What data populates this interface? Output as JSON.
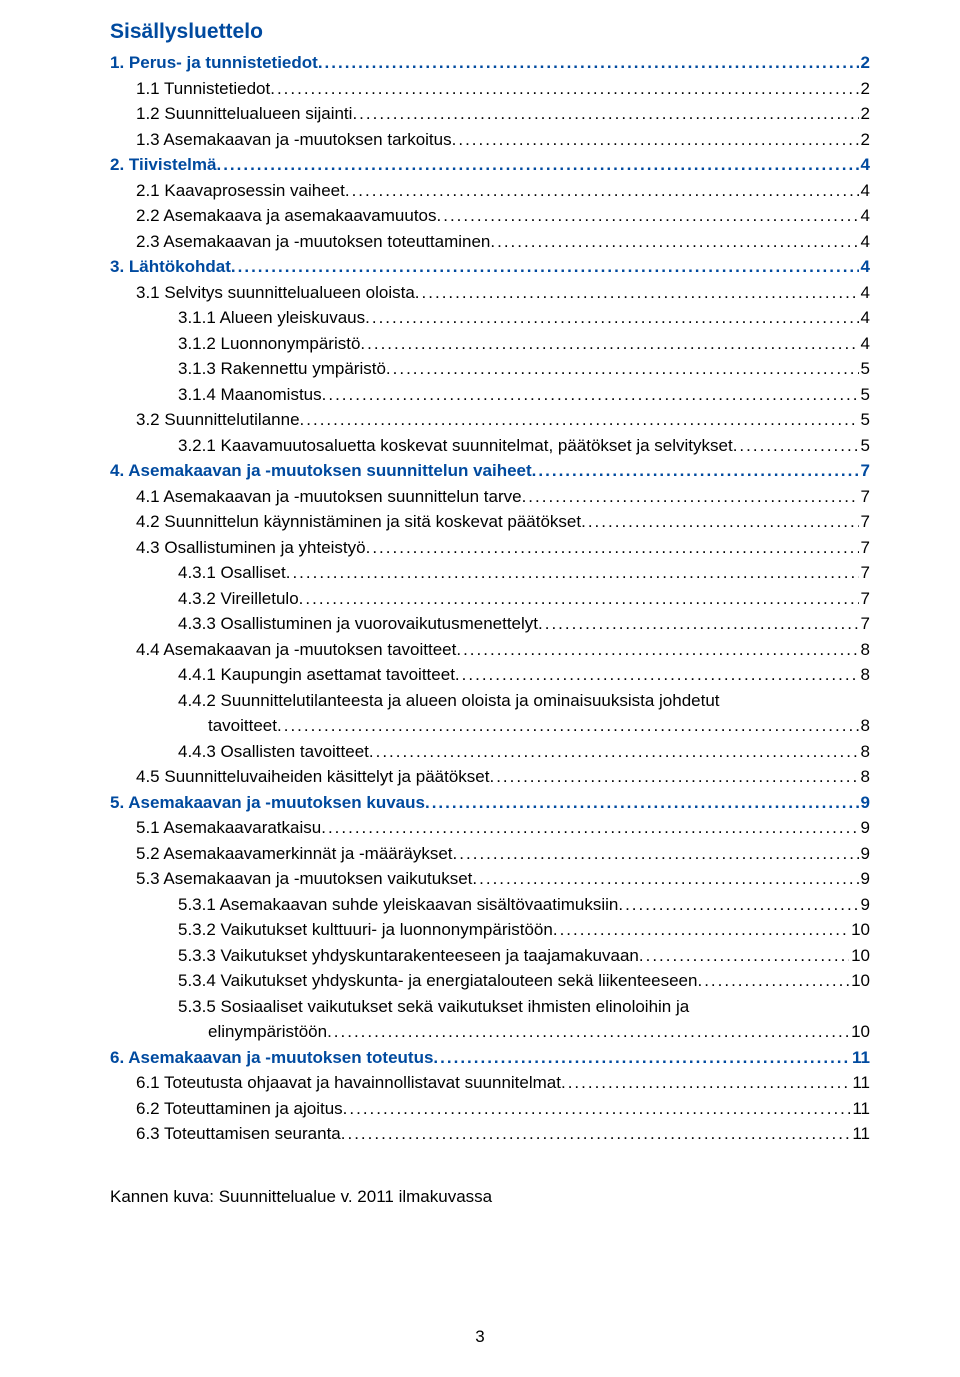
{
  "colors": {
    "heading_blue": "#004a9f",
    "body_text": "#000000",
    "background": "#ffffff"
  },
  "typography": {
    "title_fontsize_pt": 16,
    "body_fontsize_pt": 13,
    "font_family": "Arial"
  },
  "title": "Sisällysluettelo",
  "caption": "Kannen kuva: Suunnittelualue v. 2011 ilmakuvassa",
  "page_number": "3",
  "toc": [
    {
      "level": 1,
      "label": "1. Perus- ja tunnistetiedot",
      "page": "2"
    },
    {
      "level": 2,
      "label": "1.1  Tunnistetiedot",
      "page": "2"
    },
    {
      "level": 2,
      "label": "1.2  Suunnittelualueen sijainti",
      "page": "2"
    },
    {
      "level": 2,
      "label": "1.3  Asemakaavan ja -muutoksen tarkoitus",
      "page": "2"
    },
    {
      "level": 1,
      "label": "2. Tiivistelmä",
      "page": "4"
    },
    {
      "level": 2,
      "label": "2.1  Kaavaprosessin vaiheet",
      "page": "4"
    },
    {
      "level": 2,
      "label": "2.2  Asemakaava ja asemakaavamuutos",
      "page": "4"
    },
    {
      "level": 2,
      "label": "2.3  Asemakaavan ja -muutoksen toteuttaminen",
      "page": "4"
    },
    {
      "level": 1,
      "label": "3. Lähtökohdat",
      "page": "4"
    },
    {
      "level": 2,
      "label": "3.1  Selvitys suunnittelualueen oloista",
      "page": "4"
    },
    {
      "level": 3,
      "label": "3.1.1  Alueen yleiskuvaus",
      "page": "4"
    },
    {
      "level": 3,
      "label": "3.1.2  Luonnonympäristö",
      "page": "4"
    },
    {
      "level": 3,
      "label": "3.1.3  Rakennettu ympäristö",
      "page": "5"
    },
    {
      "level": 3,
      "label": "3.1.4  Maanomistus",
      "page": "5"
    },
    {
      "level": 2,
      "label": "3.2  Suunnittelutilanne",
      "page": "5"
    },
    {
      "level": 3,
      "label": "3.2.1  Kaavamuutosaluetta koskevat suunnitelmat, päätökset ja selvitykset",
      "page": "5"
    },
    {
      "level": 1,
      "label": "4. Asemakaavan ja -muutoksen suunnittelun vaiheet",
      "page": "7"
    },
    {
      "level": 2,
      "label": "4.1  Asemakaavan ja -muutoksen suunnittelun tarve",
      "page": "7"
    },
    {
      "level": 2,
      "label": "4.2  Suunnittelun käynnistäminen ja sitä koskevat päätökset",
      "page": "7"
    },
    {
      "level": 2,
      "label": "4.3  Osallistuminen ja yhteistyö",
      "page": "7"
    },
    {
      "level": 3,
      "label": "4.3.1  Osalliset",
      "page": "7"
    },
    {
      "level": 3,
      "label": "4.3.2  Vireilletulo",
      "page": "7"
    },
    {
      "level": 3,
      "label": "4.3.3  Osallistuminen ja vuorovaikutusmenettelyt",
      "page": "7"
    },
    {
      "level": 2,
      "label": "4.4  Asemakaavan ja -muutoksen tavoitteet",
      "page": "8"
    },
    {
      "level": 3,
      "label": "4.4.1  Kaupungin asettamat tavoitteet",
      "page": "8"
    },
    {
      "level": 3,
      "label": "4.4.2  Suunnittelutilanteesta ja alueen oloista ja ominaisuuksista johdetut",
      "page": "",
      "nowrap_leader": true
    },
    {
      "level": 4,
      "label": "tavoitteet",
      "page": "8"
    },
    {
      "level": 3,
      "label": "4.4.3  Osallisten tavoitteet",
      "page": "8"
    },
    {
      "level": 2,
      "label": "4.5  Suunnitteluvaiheiden käsittelyt ja päätökset",
      "page": "8"
    },
    {
      "level": 1,
      "label": "5. Asemakaavan ja -muutoksen kuvaus",
      "page": "9"
    },
    {
      "level": 2,
      "label": "5.1  Asemakaavaratkaisu",
      "page": "9"
    },
    {
      "level": 2,
      "label": "5.2  Asemakaavamerkinnät ja -määräykset",
      "page": "9"
    },
    {
      "level": 2,
      "label": "5.3  Asemakaavan ja -muutoksen vaikutukset",
      "page": "9"
    },
    {
      "level": 3,
      "label": "5.3.1 Asemakaavan suhde yleiskaavan sisältövaatimuksiin",
      "page": "9"
    },
    {
      "level": 3,
      "label": "5.3.2  Vaikutukset kulttuuri- ja luonnonympäristöön",
      "page": "10"
    },
    {
      "level": 3,
      "label": "5.3.3  Vaikutukset yhdyskuntarakenteeseen ja taajamakuvaan",
      "page": "10"
    },
    {
      "level": 3,
      "label": "5.3.4  Vaikutukset yhdyskunta- ja energiatalouteen sekä liikenteeseen",
      "page": "10"
    },
    {
      "level": 3,
      "label": "5.3.5  Sosiaaliset vaikutukset sekä vaikutukset ihmisten elinoloihin ja",
      "page": "",
      "nowrap_leader": true
    },
    {
      "level": 4,
      "label": "elinympäristöön",
      "page": "10"
    },
    {
      "level": 1,
      "label": "6. Asemakaavan ja -muutoksen toteutus",
      "page": "11"
    },
    {
      "level": 2,
      "label": "6.1  Toteutusta ohjaavat ja havainnollistavat suunnitelmat",
      "page": "11"
    },
    {
      "level": 2,
      "label": "6.2  Toteuttaminen ja ajoitus",
      "page": "11"
    },
    {
      "level": 2,
      "label": "6.3  Toteuttamisen seuranta",
      "page": "11"
    }
  ]
}
